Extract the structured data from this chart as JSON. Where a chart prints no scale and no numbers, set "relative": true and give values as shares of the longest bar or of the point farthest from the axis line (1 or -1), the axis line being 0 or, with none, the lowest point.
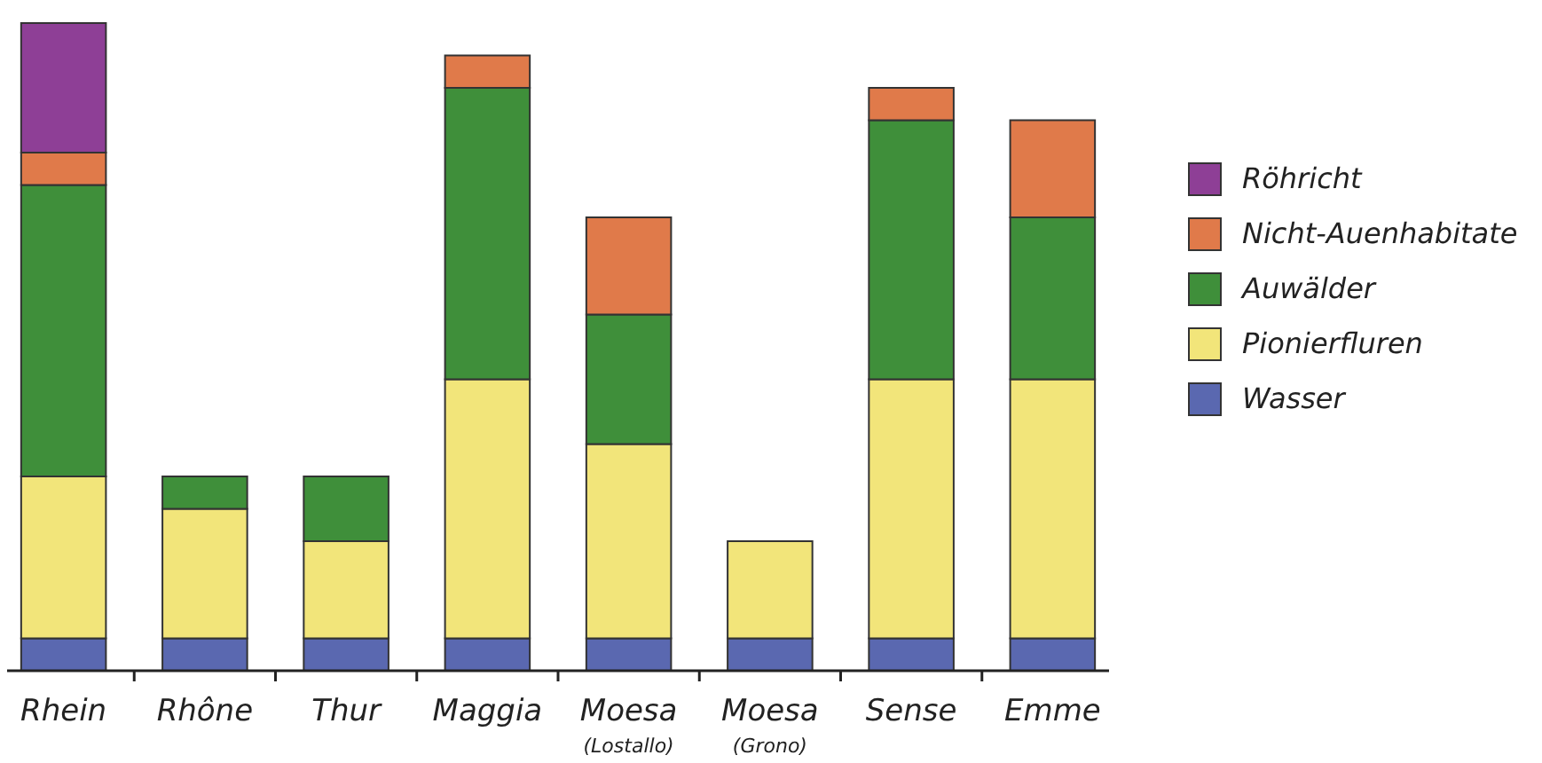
{
  "chart_data": {
    "type": "bar",
    "stacked": true,
    "relative": true,
    "legend": "right",
    "categories": [
      "Rhein",
      "Rhône",
      "Thur",
      "Maggia",
      "Moesa (Lostallo)",
      "Moesa (Grono)",
      "Sense",
      "Emme"
    ],
    "series": [
      {
        "name": "Wasser",
        "color": "#5a68b0",
        "values": [
          0.05,
          0.05,
          0.05,
          0.05,
          0.05,
          0.05,
          0.05,
          0.05
        ]
      },
      {
        "name": "Pionierfluren",
        "color": "#f2e57a",
        "values": [
          0.25,
          0.2,
          0.15,
          0.4,
          0.3,
          0.15,
          0.4,
          0.4
        ]
      },
      {
        "name": "Auwälder",
        "color": "#3f8f3a",
        "values": [
          0.45,
          0.05,
          0.1,
          0.45,
          0.2,
          null,
          0.4,
          0.25
        ]
      },
      {
        "name": "Nicht-Auenhabitate",
        "color": "#e07a4a",
        "values": [
          0.05,
          null,
          null,
          0.05,
          0.15,
          null,
          0.05,
          0.15
        ]
      },
      {
        "name": "Röhricht",
        "color": "#8e3f96",
        "values": [
          0.2,
          null,
          null,
          null,
          null,
          null,
          null,
          null
        ]
      }
    ]
  }
}
